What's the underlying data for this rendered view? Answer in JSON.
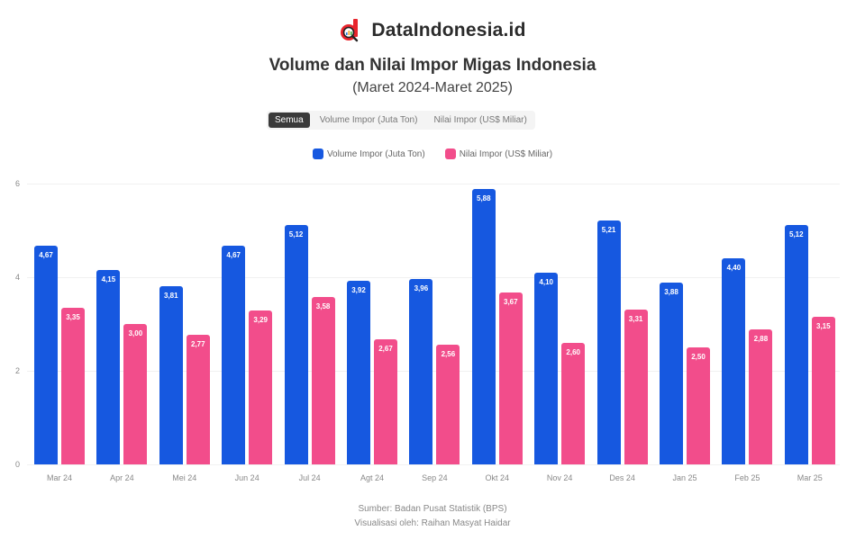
{
  "brand": {
    "name": "DataIndonesia.id",
    "logo_icon": "magnifier-d-logo",
    "logo_color": "#e8242c"
  },
  "header": {
    "title": "Volume dan Nilai Impor Migas Indonesia",
    "subtitle": "(Maret 2024-Maret 2025)"
  },
  "toggles": [
    {
      "label": "Semua",
      "active": true
    },
    {
      "label": "Volume Impor (Juta Ton)",
      "active": false
    },
    {
      "label": "Nilai Impor (US$ Miliar)",
      "active": false
    }
  ],
  "legend": [
    {
      "label": "Volume Impor (Juta Ton)",
      "color": "#1658e0"
    },
    {
      "label": "Nilai Impor (US$ Miliar)",
      "color": "#f24d8b"
    }
  ],
  "footer": {
    "source": "Sumber: Badan Pusat Statistik (BPS)",
    "credit": "Visualisasi oleh: Raihan Masyat Haidar"
  },
  "chart_data": {
    "type": "bar",
    "title": "Volume dan Nilai Impor Migas Indonesia",
    "subtitle": "(Maret 2024-Maret 2025)",
    "xlabel": "",
    "ylabel": "",
    "ylim": [
      0,
      6
    ],
    "yticks": [
      0,
      2,
      4,
      6
    ],
    "grid": true,
    "legend_position": "top",
    "categories": [
      "Mar 24",
      "Apr 24",
      "Mei 24",
      "Jun 24",
      "Jul 24",
      "Agt 24",
      "Sep 24",
      "Okt 24",
      "Nov 24",
      "Des 24",
      "Jan 25",
      "Feb 25",
      "Mar 25"
    ],
    "series": [
      {
        "name": "Volume Impor (Juta Ton)",
        "color": "#1658e0",
        "values": [
          4.67,
          4.15,
          3.81,
          4.67,
          5.12,
          3.92,
          3.96,
          5.88,
          4.1,
          5.21,
          3.88,
          4.4,
          5.12
        ]
      },
      {
        "name": "Nilai Impor (US$ Miliar)",
        "color": "#f24d8b",
        "values": [
          3.35,
          3.0,
          2.77,
          3.29,
          3.58,
          2.67,
          2.56,
          3.67,
          2.6,
          3.31,
          2.5,
          2.88,
          3.15
        ]
      }
    ]
  }
}
